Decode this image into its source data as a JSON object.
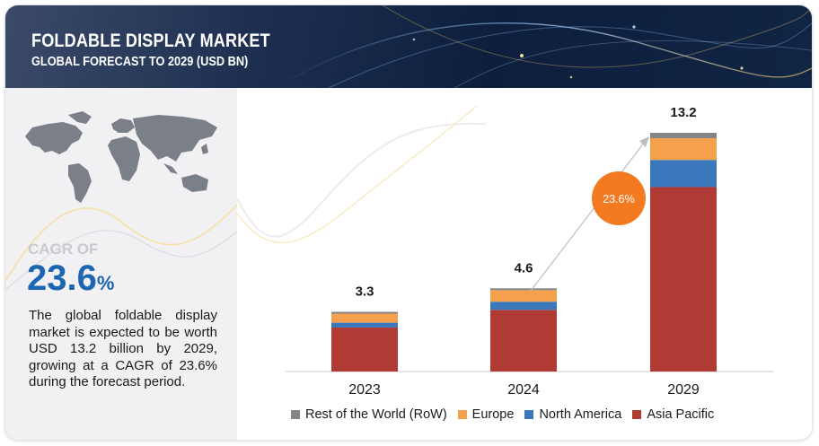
{
  "header": {
    "title": "FOLDABLE DISPLAY MARKET",
    "subtitle": "GLOBAL FORECAST TO 2029 (USD BN)"
  },
  "summary": {
    "cagr_label": "CAGR OF",
    "cagr_number": "23.6",
    "cagr_unit": "%",
    "description": "The global foldable display market is expected to be worth USD 13.2 billion by 2029, growing at a CAGR of 23.6% during the forecast period."
  },
  "colors": {
    "asia_pacific": "#b03b35",
    "north_america": "#3a78bb",
    "europe": "#f4a04c",
    "rest_of_world": "#838589",
    "cagr_bubble": "#f47a22",
    "cagr_text": "#1d66b1"
  },
  "chart_data": {
    "type": "bar",
    "stacked": true,
    "categories": [
      "2023",
      "2024",
      "2029"
    ],
    "totals": [
      3.3,
      4.6,
      13.2
    ],
    "total_labels": [
      "3.3",
      "4.6",
      "13.2"
    ],
    "series": [
      {
        "name": "Asia Pacific",
        "values": [
          2.43,
          3.41,
          10.2
        ]
      },
      {
        "name": "North America",
        "values": [
          0.27,
          0.45,
          1.5
        ]
      },
      {
        "name": "Europe",
        "values": [
          0.5,
          0.64,
          1.2
        ]
      },
      {
        "name": "Rest of the World (RoW)",
        "values": [
          0.1,
          0.1,
          0.3
        ]
      }
    ],
    "legend": [
      "Rest of the World (RoW)",
      "Europe",
      "North America",
      "Asia Pacific"
    ],
    "annotation": "23.6%",
    "ylim": [
      0,
      13.2
    ],
    "grid": false,
    "legend_position": "bottom"
  }
}
